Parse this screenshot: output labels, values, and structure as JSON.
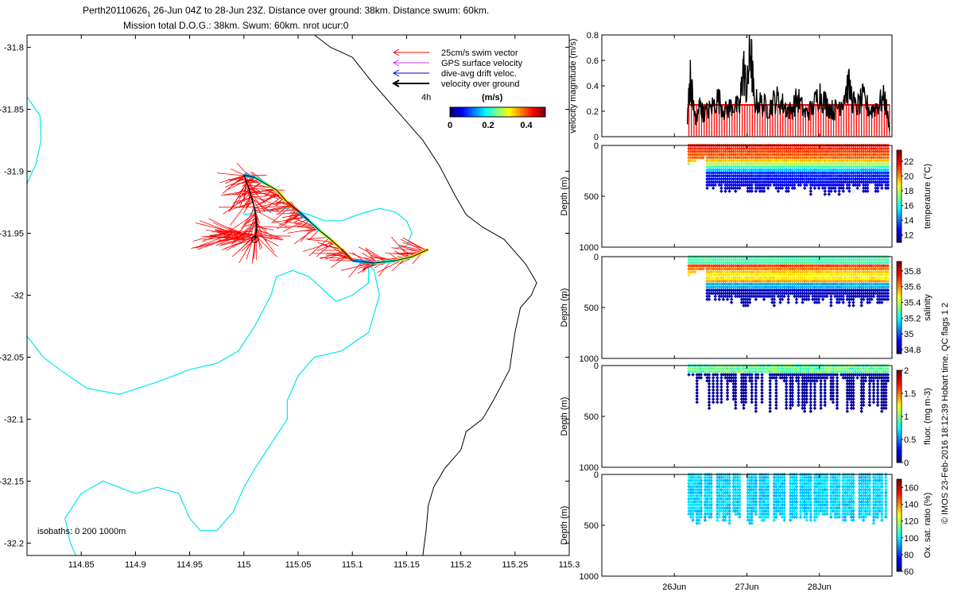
{
  "figure": {
    "title_line1": "Perth20110626",
    "title_subscript": "1",
    "title_line1_rest": " 26-Jun 04Z to 28-Jun 23Z. Distance over ground: 38km. Distance swum: 60km.",
    "title_line2": "Mission total D.O.G.: 38km. Swum: 60km. nrot ucur:0",
    "credit": "© IMOS 23-Feb-2016 18:12:39 Hobart time. QC flags 1  2"
  },
  "colors": {
    "swim": "#ff0000",
    "gps": "#cc33ff",
    "drift": "#0000cc",
    "track": "#000000",
    "isobath_200": "#00e5ee",
    "isobath_1000": "#000000"
  },
  "chart_data": [
    {
      "type": "line",
      "panel": "map",
      "xlim": [
        114.8,
        115.3
      ],
      "ylim": [
        -32.21,
        -31.79
      ],
      "xticks": [
        "114.85",
        "114.9",
        "114.95",
        "115",
        "115.05",
        "115.1",
        "115.15",
        "115.2",
        "115.25",
        "115.3"
      ],
      "xtick_values": [
        114.85,
        114.9,
        114.95,
        115.0,
        115.05,
        115.1,
        115.15,
        115.2,
        115.25,
        115.3
      ],
      "yticks": [
        "-31.8",
        "-31.85",
        "-31.9",
        "-31.95",
        "-32",
        "-32.05",
        "-32.1",
        "-32.15",
        "-32.2"
      ],
      "ytick_values": [
        -31.8,
        -31.85,
        -31.9,
        -31.95,
        -32.0,
        -32.05,
        -32.1,
        -32.15,
        -32.2
      ],
      "legend": {
        "entries": [
          "25cm/s swim vector",
          "GPS surface velocity",
          "dive-avg drift veloc.",
          "velocity over ground"
        ],
        "time_label": "4h",
        "placement": "top-right"
      },
      "colorbar": {
        "label": "(m/s)",
        "ticks": [
          "0",
          "0.2",
          "0.4"
        ],
        "range": [
          0,
          0.5
        ]
      },
      "isobath_note": "isobaths: 0   200   1000m",
      "track": [
        [
          115.0,
          -31.903
        ],
        [
          115.01,
          -31.905
        ],
        [
          115.02,
          -31.91
        ],
        [
          115.03,
          -31.915
        ],
        [
          115.04,
          -31.925
        ],
        [
          115.05,
          -31.932
        ],
        [
          115.06,
          -31.94
        ],
        [
          115.07,
          -31.948
        ],
        [
          115.08,
          -31.955
        ],
        [
          115.09,
          -31.963
        ],
        [
          115.1,
          -31.972
        ],
        [
          115.12,
          -31.974
        ],
        [
          115.14,
          -31.972
        ],
        [
          115.155,
          -31.969
        ],
        [
          115.17,
          -31.963
        ]
      ],
      "track_return": [
        [
          115.0,
          -31.903
        ],
        [
          115.005,
          -31.915
        ],
        [
          115.01,
          -31.93
        ],
        [
          115.012,
          -31.945
        ],
        [
          115.01,
          -31.955
        ]
      ],
      "isobath_200": [
        [
          [
            114.8,
            -31.84
          ],
          [
            114.812,
            -31.855
          ],
          [
            114.813,
            -31.875
          ],
          [
            114.808,
            -31.895
          ],
          [
            114.805,
            -31.9
          ],
          [
            114.8,
            -31.91
          ]
        ],
        [
          [
            114.8,
            -32.033
          ],
          [
            114.815,
            -32.05
          ],
          [
            114.83,
            -32.06
          ],
          [
            114.855,
            -32.075
          ],
          [
            114.885,
            -32.08
          ],
          [
            114.92,
            -32.07
          ],
          [
            114.95,
            -32.06
          ],
          [
            114.975,
            -32.055
          ],
          [
            114.995,
            -32.045
          ],
          [
            115.01,
            -32.025
          ],
          [
            115.025,
            -32.0
          ],
          [
            115.03,
            -31.985
          ],
          [
            115.045,
            -31.98
          ],
          [
            115.06,
            -31.985
          ],
          [
            115.085,
            -32.005
          ],
          [
            115.1,
            -32.0
          ],
          [
            115.115,
            -31.99
          ],
          [
            115.115,
            -31.975
          ],
          [
            115.12,
            -31.98
          ],
          [
            115.125,
            -32.0
          ],
          [
            115.115,
            -32.03
          ],
          [
            115.09,
            -32.045
          ],
          [
            115.065,
            -32.05
          ],
          [
            115.05,
            -32.065
          ],
          [
            115.04,
            -32.085
          ],
          [
            115.04,
            -32.1
          ],
          [
            115.025,
            -32.12
          ],
          [
            115.01,
            -32.14
          ],
          [
            115.0,
            -32.155
          ],
          [
            114.99,
            -32.175
          ],
          [
            114.975,
            -32.19
          ],
          [
            114.96,
            -32.19
          ],
          [
            114.95,
            -32.18
          ],
          [
            114.94,
            -32.16
          ],
          [
            114.92,
            -32.155
          ],
          [
            114.9,
            -32.16
          ],
          [
            114.885,
            -32.155
          ],
          [
            114.87,
            -32.15
          ],
          [
            114.85,
            -32.16
          ],
          [
            114.835,
            -32.18
          ],
          [
            114.84,
            -32.2
          ],
          [
            114.845,
            -32.21
          ]
        ],
        [
          [
            115.0,
            -31.935
          ],
          [
            115.02,
            -31.932
          ],
          [
            115.04,
            -31.93
          ],
          [
            115.06,
            -31.935
          ],
          [
            115.075,
            -31.94
          ],
          [
            115.09,
            -31.94
          ],
          [
            115.105,
            -31.935
          ],
          [
            115.125,
            -31.93
          ],
          [
            115.14,
            -31.933
          ],
          [
            115.15,
            -31.94
          ],
          [
            115.155,
            -31.95
          ],
          [
            115.15,
            -31.96
          ],
          [
            115.14,
            -31.962
          ]
        ]
      ],
      "isobath_1000": [
        [
          [
            115.065,
            -31.79
          ],
          [
            115.08,
            -31.8
          ],
          [
            115.1,
            -31.808
          ],
          [
            115.12,
            -31.83
          ],
          [
            115.135,
            -31.845
          ],
          [
            115.15,
            -31.86
          ],
          [
            115.165,
            -31.875
          ],
          [
            115.18,
            -31.895
          ],
          [
            115.195,
            -31.92
          ],
          [
            115.205,
            -31.935
          ],
          [
            115.22,
            -31.945
          ],
          [
            115.24,
            -31.955
          ],
          [
            115.26,
            -31.975
          ],
          [
            115.27,
            -31.99
          ],
          [
            115.265,
            -32.0
          ],
          [
            115.255,
            -32.01
          ],
          [
            115.25,
            -32.03
          ],
          [
            115.245,
            -32.06
          ],
          [
            115.23,
            -32.085
          ],
          [
            115.22,
            -32.1
          ],
          [
            115.205,
            -32.11
          ],
          [
            115.2,
            -32.125
          ],
          [
            115.185,
            -32.14
          ],
          [
            115.175,
            -32.155
          ],
          [
            115.17,
            -32.17
          ],
          [
            115.168,
            -32.19
          ],
          [
            115.165,
            -32.21
          ]
        ]
      ]
    },
    {
      "type": "line",
      "panel": "velocity",
      "ylabel": "velocity magnitude (m/s)",
      "ylim": [
        0,
        0.8
      ],
      "yticks": [
        "0",
        "0.2",
        "0.4",
        "0.6",
        "0.8"
      ],
      "ytick_values": [
        0,
        0.2,
        0.4,
        0.6,
        0.8
      ],
      "xlim": [
        25.0,
        29.0
      ],
      "series": [
        {
          "x": [
            26.18,
            26.22,
            26.27,
            26.3,
            26.35,
            26.4,
            26.5,
            26.6,
            26.7,
            26.8,
            26.9,
            26.95,
            27.0,
            27.05,
            27.1,
            27.2,
            27.3,
            27.4,
            27.5,
            27.6,
            27.7,
            27.8,
            27.9,
            28.0,
            28.1,
            28.2,
            28.3,
            28.4,
            28.5,
            28.6,
            28.7,
            28.8,
            28.9,
            28.97
          ],
          "y": [
            0.15,
            0.48,
            0.2,
            0.12,
            0.25,
            0.18,
            0.22,
            0.3,
            0.2,
            0.25,
            0.22,
            0.55,
            0.35,
            0.7,
            0.28,
            0.26,
            0.22,
            0.3,
            0.25,
            0.2,
            0.3,
            0.18,
            0.22,
            0.35,
            0.25,
            0.2,
            0.28,
            0.4,
            0.22,
            0.3,
            0.2,
            0.25,
            0.3,
            0.05
          ]
        },
        {
          "x": [
            26.18,
            28.97
          ],
          "y": [
            0.25,
            0.25
          ]
        }
      ]
    },
    {
      "type": "scatter",
      "panel": "temperature",
      "ylabel": "Depth (m)",
      "ylim": [
        1000,
        0
      ],
      "yticks": [
        "0",
        "500",
        "1000"
      ],
      "ytick_values": [
        0,
        500,
        1000
      ],
      "colorbar": {
        "label": "temperature (°C)",
        "ticks": [
          "12",
          "14",
          "16",
          "18",
          "20",
          "22"
        ],
        "range": [
          11,
          23.5
        ]
      },
      "start_day": 26.2,
      "end_day": 28.97,
      "max_depth": 490
    },
    {
      "type": "scatter",
      "panel": "salinity",
      "ylabel": "Depth (m)",
      "ylim": [
        1000,
        0
      ],
      "yticks": [
        "0",
        "500",
        "1000"
      ],
      "ytick_values": [
        0,
        500,
        1000
      ],
      "colorbar": {
        "label": "salinity",
        "ticks": [
          "34.8",
          "35",
          "35.2",
          "35.4",
          "35.6",
          "35.8"
        ],
        "range": [
          34.75,
          35.92
        ]
      },
      "start_day": 26.2,
      "end_day": 28.97,
      "max_depth": 490
    },
    {
      "type": "scatter",
      "panel": "fluorescence",
      "ylabel": "Depth (m)",
      "ylim": [
        1000,
        0
      ],
      "yticks": [
        "0",
        "500",
        "1000"
      ],
      "ytick_values": [
        0,
        500,
        1000
      ],
      "colorbar": {
        "label": "fluor. (mg m-3)",
        "ticks": [
          "0",
          "0.5",
          "1",
          "1.5",
          "2"
        ],
        "range": [
          0,
          2
        ]
      },
      "start_day": 26.2,
      "end_day": 28.97,
      "max_depth": 460
    },
    {
      "type": "scatter",
      "panel": "oxygen",
      "ylabel": "Depth (m)",
      "ylim": [
        1000,
        0
      ],
      "yticks": [
        "0",
        "500",
        "1000"
      ],
      "ytick_values": [
        0,
        500,
        1000
      ],
      "xlabel_ticks": [
        "26Jun",
        "27Jun",
        "28Jun"
      ],
      "xtick_values": [
        26.0,
        27.0,
        28.0
      ],
      "colorbar": {
        "label": "Ox. sat. ratio (%)",
        "ticks": [
          "60",
          "80",
          "100",
          "120",
          "140",
          "160"
        ],
        "range": [
          60,
          170
        ]
      },
      "start_day": 26.2,
      "end_day": 28.97,
      "max_depth": 490
    }
  ]
}
